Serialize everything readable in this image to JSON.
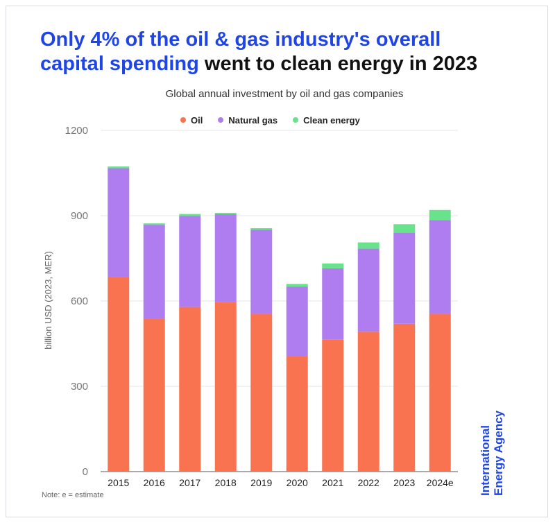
{
  "title": {
    "highlight_part1": "Only 4% of the oil & gas industry's overall",
    "highlight_part2": "capital spending",
    "rest": "went to clean energy in 2023"
  },
  "note": "Note: e = estimate",
  "brand": {
    "line1": "International",
    "line2": "Energy Agency"
  },
  "colors": {
    "oil": "#f97350",
    "natural_gas": "#b07df0",
    "clean_energy": "#68e38b",
    "title_blue": "#1f45e6"
  },
  "chart_data": {
    "type": "bar",
    "stacked": true,
    "title": "Global annual investment by oil and gas companies",
    "ylabel": "billion USD (2023, MER)",
    "xlabel": "",
    "ylim": [
      0,
      1200
    ],
    "yticks": [
      "0",
      "300",
      "600",
      "900",
      "1200"
    ],
    "grid": true,
    "legend_position": "top-center",
    "categories": [
      "2015",
      "2016",
      "2017",
      "2018",
      "2019",
      "2020",
      "2021",
      "2022",
      "2023",
      "2024e"
    ],
    "series": [
      {
        "name": "Oil",
        "color": "#f97350",
        "values": [
          683,
          538,
          579,
          597,
          555,
          405,
          465,
          492,
          520,
          555
        ]
      },
      {
        "name": "Natural gas",
        "color": "#b07df0",
        "values": [
          384,
          330,
          320,
          308,
          296,
          245,
          250,
          292,
          320,
          330
        ]
      },
      {
        "name": "Clean energy",
        "color": "#68e38b",
        "values": [
          6,
          5,
          7,
          5,
          5,
          10,
          17,
          22,
          30,
          35
        ]
      }
    ]
  }
}
